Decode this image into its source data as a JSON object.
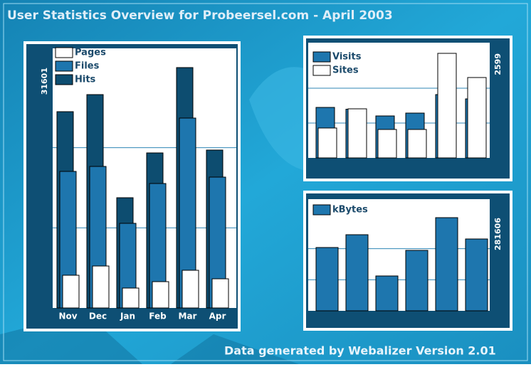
{
  "title": "User Statistics Overview for Probeersel.com - April 2003",
  "footer": "Data generated by Webalizer Version 2.01",
  "chart_data": [
    {
      "type": "bar",
      "categories": [
        "Nov",
        "Dec",
        "Jan",
        "Feb",
        "Mar",
        "Apr"
      ],
      "series": [
        {
          "name": "Pages",
          "color": "#ffffff",
          "values": [
            4301,
            5516,
            2618,
            3459,
            4955,
            3833
          ]
        },
        {
          "name": "Files",
          "color": "#1e76ae",
          "values": [
            17951,
            18605,
            11126,
            16361,
            24963,
            17203
          ]
        },
        {
          "name": "Hits",
          "color": "#0d4d70",
          "values": [
            25805,
            28048,
            14492,
            20382,
            31601,
            20756
          ]
        }
      ],
      "ylim": [
        0,
        31601
      ],
      "yticks": [
        31601
      ]
    },
    {
      "type": "bar",
      "series": [
        {
          "name": "Visits",
          "color": "#1e76ae",
          "values": [
            1255,
            1210,
            1043,
            1114,
            1574,
            1467
          ]
        },
        {
          "name": "Sites",
          "color": "#ffffff",
          "values": [
            743,
            1220,
            707,
            707,
            2599,
            1998
          ]
        }
      ],
      "ylim": [
        0,
        2599
      ],
      "yticks": [
        2599
      ]
    },
    {
      "type": "bar",
      "series": [
        {
          "name": "kBytes",
          "color": "#1e76ae",
          "values": [
            191327,
            230029,
            105340,
            182728,
            281606,
            217130
          ]
        }
      ],
      "ylim": [
        0,
        281606
      ],
      "yticks": [
        281606
      ]
    }
  ]
}
